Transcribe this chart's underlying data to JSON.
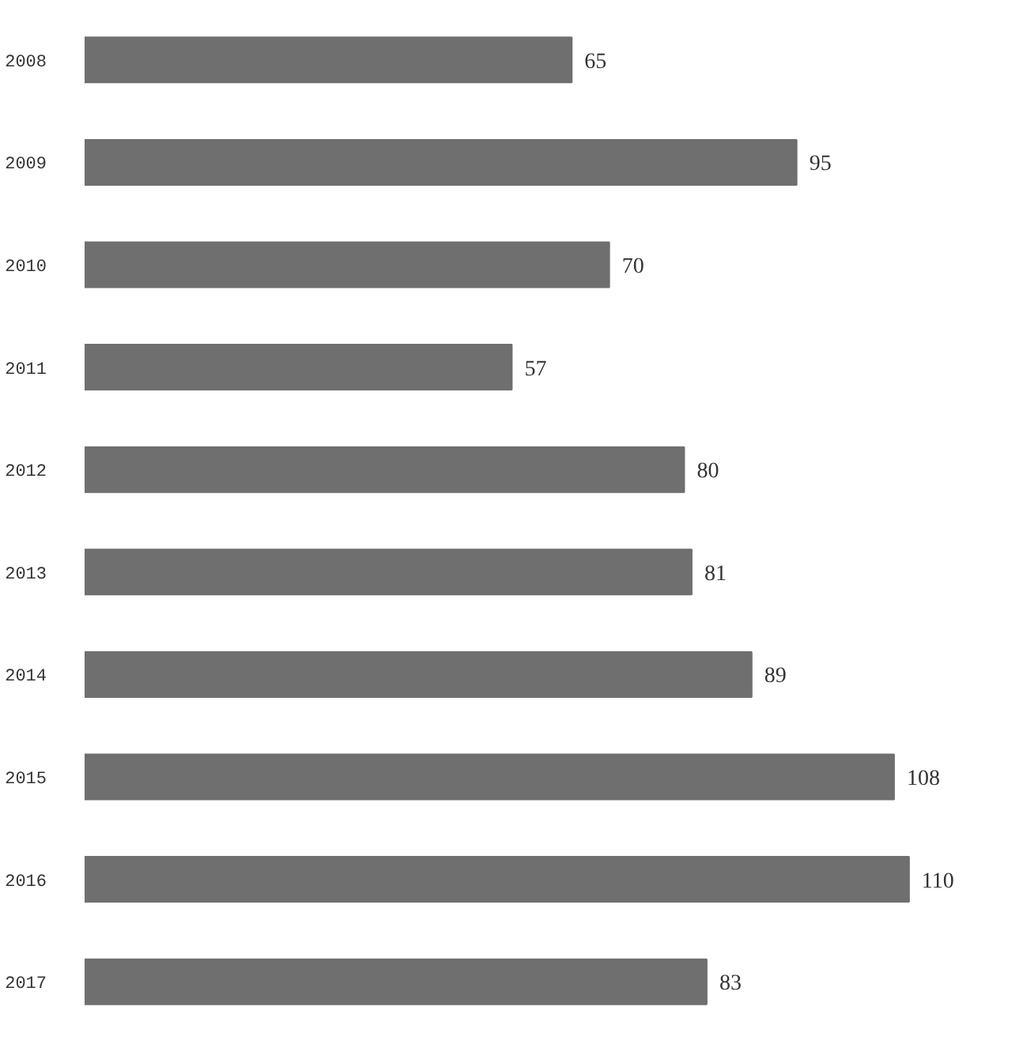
{
  "chart_data": {
    "type": "bar",
    "orientation": "horizontal",
    "categories": [
      "2008",
      "2009",
      "2010",
      "2011",
      "2012",
      "2013",
      "2014",
      "2015",
      "2016",
      "2017"
    ],
    "values": [
      65,
      95,
      70,
      57,
      80,
      81,
      89,
      108,
      110,
      83
    ],
    "color": "#6f6f6f",
    "data_labels": true
  }
}
